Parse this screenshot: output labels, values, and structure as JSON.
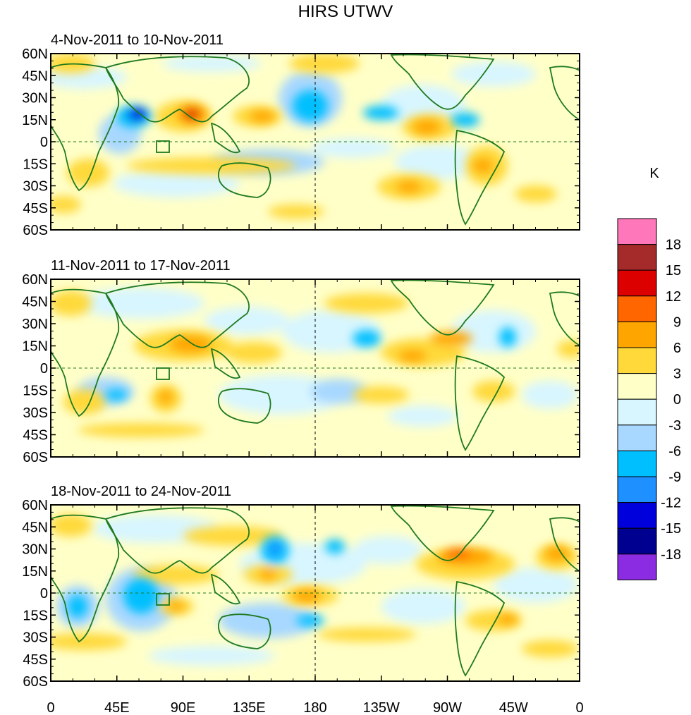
{
  "title": "HIRS UTWV",
  "panels": [
    {
      "label": "4-Nov-2011 to 10-Nov-2011"
    },
    {
      "label": "11-Nov-2011 to 17-Nov-2011"
    },
    {
      "label": "18-Nov-2011 to 24-Nov-2011"
    }
  ],
  "lat_ticks": [
    "60N",
    "45N",
    "30N",
    "15N",
    "0",
    "15S",
    "30S",
    "45S",
    "60S"
  ],
  "lon_ticks": [
    "0",
    "45E",
    "90E",
    "135E",
    "180",
    "135W",
    "90W",
    "45W",
    "0"
  ],
  "colorbar": {
    "unit": "K",
    "labels": [
      "18",
      "15",
      "12",
      "9",
      "6",
      "3",
      "0",
      "-3",
      "-6",
      "-9",
      "-12",
      "-15",
      "-18"
    ],
    "colors": [
      "#ff77bb",
      "#a52a2a",
      "#dd0000",
      "#ff6600",
      "#ffa500",
      "#ffd93a",
      "#ffffc8",
      "#d8f6ff",
      "#a8d8ff",
      "#00bfff",
      "#1e90ff",
      "#0000dd",
      "#000090",
      "#8b2be2"
    ]
  }
}
